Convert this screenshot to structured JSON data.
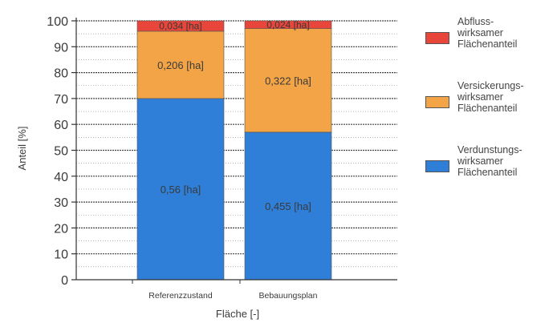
{
  "chart_data": {
    "type": "bar",
    "stacked": true,
    "categories": [
      "Referenzzustand",
      "Bebauungsplan"
    ],
    "series": [
      {
        "name": "Verdunstungs-\nwirksamer\nFlächenanteil",
        "color": "#2f7fd9",
        "values": [
          70,
          57
        ],
        "labels": [
          "0,56 [ha]",
          "0,455 [ha]"
        ]
      },
      {
        "name": "Versickerungs-\nwirksamer\nFlächenanteil",
        "color": "#f2a447",
        "values": [
          26,
          40
        ],
        "labels": [
          "0,206 [ha]",
          "0,322 [ha]"
        ]
      },
      {
        "name": "Abfluss-\nwirksamer\nFlächenanteil",
        "color": "#e8453b",
        "values": [
          4,
          3
        ],
        "labels": [
          "0,034 [ha]",
          "0,024 [ha]"
        ]
      }
    ],
    "xlabel": "Fläche [-]",
    "ylabel": "Anteil [%]",
    "ylim": [
      0,
      100
    ],
    "yticks": [
      0,
      10,
      20,
      30,
      40,
      50,
      60,
      70,
      80,
      90,
      100
    ],
    "grid": true,
    "legend_position": "right"
  }
}
